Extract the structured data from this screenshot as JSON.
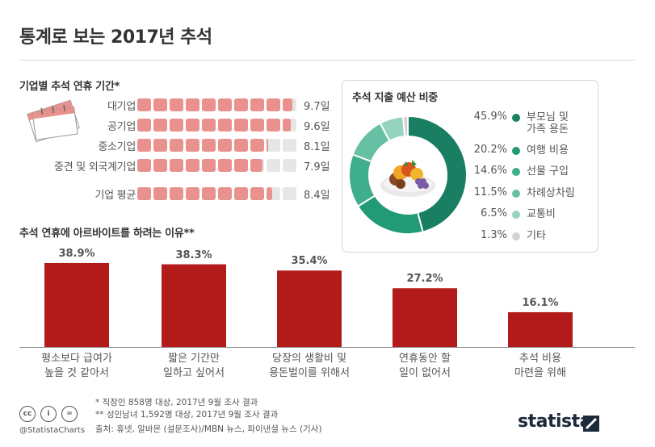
{
  "title": "통계로 보는 2017년 추석",
  "colors": {
    "accent_red": "#b31b1b",
    "salmon": "#e8918d",
    "grey_track": "#e6e6e6",
    "teal_1": "#1a7e63",
    "teal_2": "#219a75",
    "teal_3": "#3fae8c",
    "teal_4": "#66c0a4",
    "teal_5": "#95d3c0",
    "grey_other": "#d3d3d3"
  },
  "chart_data": [
    {
      "type": "bar",
      "orientation": "horizontal",
      "title": "기업별 추석 연휴 기간*",
      "categories": [
        "대기업",
        "공기업",
        "중소기업",
        "중견 및 외국계기업",
        "기업 평균"
      ],
      "values": [
        9.7,
        9.6,
        8.1,
        7.9,
        8.4
      ],
      "value_labels": [
        "9.7일",
        "9.6일",
        "8.1일",
        "7.9일",
        "8.4일"
      ],
      "xlim": [
        0,
        10
      ],
      "icon": "calendar-icon"
    },
    {
      "type": "pie",
      "title": "추석 지출 예산 비중",
      "labels": [
        "부모님 및\n가족 용돈",
        "여행 비용",
        "선물 구입",
        "차례상차림",
        "교통비",
        "기타"
      ],
      "values": [
        45.9,
        20.2,
        14.6,
        11.5,
        6.5,
        1.3
      ],
      "value_labels": [
        "45.9%",
        "20.2%",
        "14.6%",
        "11.5%",
        "6.5%",
        "1.3%"
      ],
      "colors": [
        "#1a7e63",
        "#219a75",
        "#3fae8c",
        "#66c0a4",
        "#95d3c0",
        "#d3d3d3"
      ],
      "center_image": "fruit-basket-icon"
    },
    {
      "type": "bar",
      "title": "추석 연휴에 아르바이트를 하려는 이유**",
      "categories": [
        "평소보다 급여가\n높을 것 같아서",
        "짧은 기간만\n일하고 싶어서",
        "당장의 생활비 및\n용돈벌이를 위해서",
        "연휴동안 할\n일이 없어서",
        "추석 비용\n마련을 위해"
      ],
      "values": [
        38.9,
        38.3,
        35.4,
        27.2,
        16.1
      ],
      "value_labels": [
        "38.9%",
        "38.3%",
        "35.4%",
        "27.2%",
        "16.1%"
      ],
      "ylim": [
        0,
        40
      ],
      "grid": false
    }
  ],
  "footer": {
    "note1": "*  직장인 858명 대상, 2017년 9월 조사 결과",
    "note2": "** 성인남녀 1,592명 대상, 2017년 9월 조사 결과",
    "source": "출처: 휴넷, 알바몬 (설문조사)/MBN 뉴스, 파이낸셜 뉴스 (기사)",
    "credit": "@StatistaCharts",
    "cc_icons": [
      "cc",
      "i",
      "="
    ],
    "logo": "statista"
  }
}
